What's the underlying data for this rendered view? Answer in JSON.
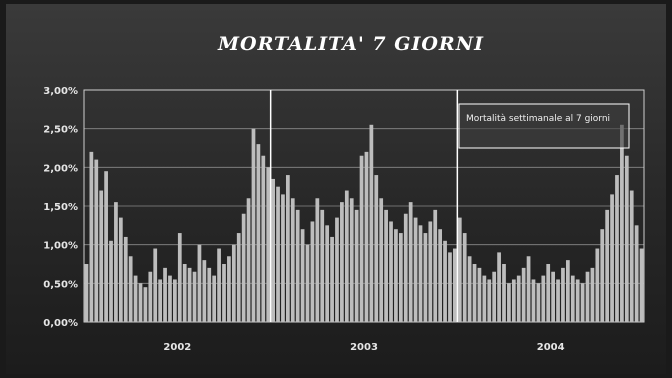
{
  "chart_data": {
    "type": "bar",
    "title": "MORTALITA' 7 GIORNI",
    "xlabel": "",
    "ylabel": "",
    "ylim": [
      0,
      3
    ],
    "y_ticks": [
      "0,00%",
      "0,50%",
      "1,00%",
      "1,50%",
      "2,00%",
      "2,50%",
      "3,00%"
    ],
    "x_labels": [
      "2002",
      "2003",
      "2004"
    ],
    "legend": {
      "label": "Mortalità settimanale al 7 giorni",
      "placement": "top-right"
    },
    "grid": true,
    "colors": {
      "bar": "#bdbdbd",
      "grid": "#8a8a8a",
      "divider": "#ffffff",
      "text": "#ffffff"
    },
    "series": [
      {
        "values": [
          0.75,
          2.2,
          2.1,
          1.7,
          1.95,
          1.05,
          1.55,
          1.35,
          1.1,
          0.85,
          0.6,
          0.5,
          0.45,
          0.65,
          0.95,
          0.55,
          0.7,
          0.6,
          0.55,
          1.15,
          0.75,
          0.7,
          0.65,
          1.0,
          0.8,
          0.7,
          0.6,
          0.95,
          0.75,
          0.85,
          1.0,
          1.15,
          1.4,
          1.6,
          2.5,
          2.3,
          2.15,
          2.0,
          1.85,
          1.75,
          1.65,
          1.9,
          1.6,
          1.45,
          1.2,
          1.0,
          1.3,
          1.6,
          1.45,
          1.25,
          1.1,
          1.35,
          1.55,
          1.7,
          1.6,
          1.45,
          2.15,
          2.2,
          2.55,
          1.9,
          1.6,
          1.45,
          1.3,
          1.2,
          1.15,
          1.4,
          1.55,
          1.35,
          1.25,
          1.15,
          1.3,
          1.45,
          1.2,
          1.05,
          0.9,
          0.95,
          1.35,
          1.15,
          0.85,
          0.75,
          0.7,
          0.6,
          0.55,
          0.65,
          0.9,
          0.75,
          0.5,
          0.55,
          0.6,
          0.7,
          0.85,
          0.55,
          0.5,
          0.6,
          0.75,
          0.65,
          0.55,
          0.7,
          0.8,
          0.6,
          0.55,
          0.5,
          0.65,
          0.7,
          0.95,
          1.2,
          1.45,
          1.65,
          1.9,
          2.55,
          2.15,
          1.7,
          1.25,
          0.95
        ]
      }
    ]
  }
}
